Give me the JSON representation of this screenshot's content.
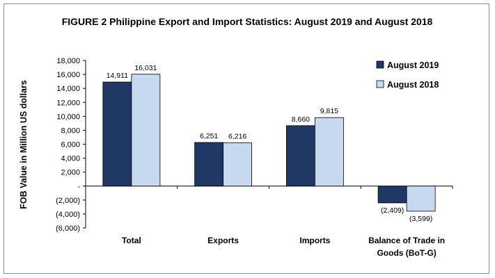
{
  "chart_data": {
    "type": "bar",
    "title": "FIGURE 2  Philippine Export and Import Statistics:  August 2019 and August 2018",
    "ylabel": "FOB Value in Million US dollars",
    "xlabel": "",
    "categories": [
      [
        "Total"
      ],
      [
        "Exports"
      ],
      [
        "Imports"
      ],
      [
        "Balance of Trade in",
        "Goods (BoT-G)"
      ]
    ],
    "series": [
      {
        "name": "August 2019",
        "color": "#1f3864",
        "values": [
          14911,
          6251,
          8660,
          -2409
        ],
        "labels": [
          "14,911",
          "6,251",
          "8,660",
          "(2,409)"
        ]
      },
      {
        "name": "August 2018",
        "color": "#c6d9f1",
        "values": [
          16031,
          6216,
          9815,
          -3599
        ],
        "labels": [
          "16,031",
          "6,216",
          "9,815",
          "(3,599)"
        ]
      }
    ],
    "ylim": [
      -6000,
      18000
    ],
    "ytick_values": [
      18000,
      16000,
      14000,
      12000,
      10000,
      8000,
      6000,
      4000,
      2000,
      0,
      -2000,
      -4000,
      -6000
    ],
    "ytick_labels": [
      "18,000",
      "16,000",
      "14,000",
      "12,000",
      "10,000",
      "8,000",
      "6,000",
      "4,000",
      "2,000",
      "-",
      "(2,000)",
      "(4,000)",
      "(6,000)"
    ],
    "grid": false,
    "legend_position": "top-right"
  }
}
